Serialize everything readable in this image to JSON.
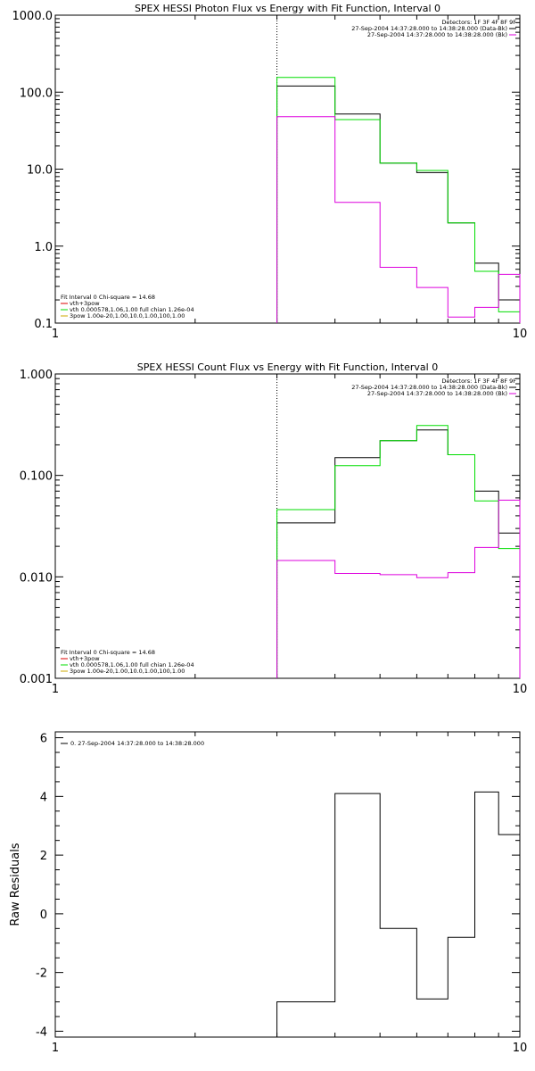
{
  "chart_data": [
    {
      "type": "line",
      "title": "SPEX HESSI Photon Flux vs Energy with Fit Function, Interval 0",
      "xscale": "log",
      "yscale": "log",
      "xlim": [
        1,
        10
      ],
      "ylim": [
        0.1,
        1000
      ],
      "xticks": [
        "1",
        "10"
      ],
      "yticks": [
        "0.1",
        "1.0",
        "10.0",
        "100.0",
        "1000.0"
      ],
      "vline_x": 3,
      "legend_top_right": [
        "Detectors: 1F 3F 4F 8F 9F",
        "27-Sep-2004 14:37:28.000 to 14:38:28.000 (Data-Bk)",
        "27-Sep-2004 14:37:28.000 to 14:38:28.000 (Bk)"
      ],
      "legend_bottom_left": [
        "Fit Interval 0   Chi-square = 14.68",
        "vth+3pow",
        "vth 0.000578,1.06,1.00  full chian 1.26e-04",
        "3pow 1.00e-20,1.00,10.0,1.00,100,1.00"
      ],
      "bin_edges": [
        3,
        4,
        5,
        6,
        7,
        8,
        9,
        10
      ],
      "series": [
        {
          "name": "27-Sep-2004 14:37:28.000 to 14:38:28.000 (Data-Bk)",
          "color": "#000000",
          "values": [
            120,
            52,
            12,
            9,
            2.0,
            0.6,
            0.2
          ]
        },
        {
          "name": "vth+3pow",
          "color": "#00dd00",
          "values": [
            155,
            44,
            12,
            9.6,
            2.0,
            0.47,
            0.14
          ]
        },
        {
          "name": "27-Sep-2004 14:37:28.000 to 14:38:28.000 (Bk)",
          "color": "#dd00dd",
          "values": [
            48,
            3.7,
            0.53,
            0.29,
            0.12,
            0.16,
            0.43
          ]
        }
      ]
    },
    {
      "type": "line",
      "title": "SPEX HESSI Count Flux vs Energy with Fit Function, Interval 0",
      "xscale": "log",
      "yscale": "log",
      "xlim": [
        1,
        10
      ],
      "ylim": [
        0.001,
        1.0
      ],
      "xticks": [
        "1",
        "10"
      ],
      "yticks": [
        "0.001",
        "0.010",
        "0.100",
        "1.000"
      ],
      "vline_x": 3,
      "legend_top_right": [
        "Detectors: 1F 3F 4F 8F 9F",
        "27-Sep-2004 14:37:28.000 to 14:38:28.000 (Data-Bk)",
        "27-Sep-2004 14:37:28.000 to 14:38:28.000 (Bk)"
      ],
      "legend_bottom_left": [
        "Fit Interval 0   Chi-square = 14.68",
        "vth+3pow",
        "vth 0.000578,1.06,1.00  full chian 1.26e-04",
        "3pow 1.00e-20,1.00,10.0,1.00,100,1.00"
      ],
      "bin_edges": [
        3,
        4,
        5,
        6,
        7,
        8,
        9,
        10
      ],
      "series": [
        {
          "name": "27-Sep-2004 14:37:28.000 to 14:38:28.000 (Data-Bk)",
          "color": "#000000",
          "values": [
            0.034,
            0.15,
            0.22,
            0.28,
            0.16,
            0.07,
            0.027
          ]
        },
        {
          "name": "vth+3pow",
          "color": "#00dd00",
          "values": [
            0.046,
            0.125,
            0.22,
            0.31,
            0.16,
            0.056,
            0.019
          ]
        },
        {
          "name": "27-Sep-2004 14:37:28.000 to 14:38:28.000 (Bk)",
          "color": "#dd00dd",
          "values": [
            0.0145,
            0.0108,
            0.0105,
            0.0098,
            0.011,
            0.0195,
            0.057
          ]
        }
      ]
    },
    {
      "type": "line",
      "title": "",
      "ylabel": "Raw Residuals",
      "xscale": "log",
      "yscale": "linear",
      "xlim": [
        1,
        10
      ],
      "ylim": [
        -4.2,
        6.2
      ],
      "xticks": [
        "1",
        "10"
      ],
      "yticks": [
        "-4",
        "-2",
        "0",
        "2",
        "4",
        "6"
      ],
      "legend_top_left": [
        "0. 27-Sep-2004 14:37:28.000 to 14:38:28.000"
      ],
      "bin_edges": [
        3,
        4,
        5,
        6,
        7,
        8,
        9,
        10
      ],
      "series": [
        {
          "name": "0. 27-Sep-2004 14:37:28.000 to 14:38:28.000",
          "color": "#000000",
          "values": [
            -3.0,
            4.1,
            -0.5,
            -2.9,
            -0.8,
            4.15,
            2.7
          ]
        }
      ]
    }
  ]
}
